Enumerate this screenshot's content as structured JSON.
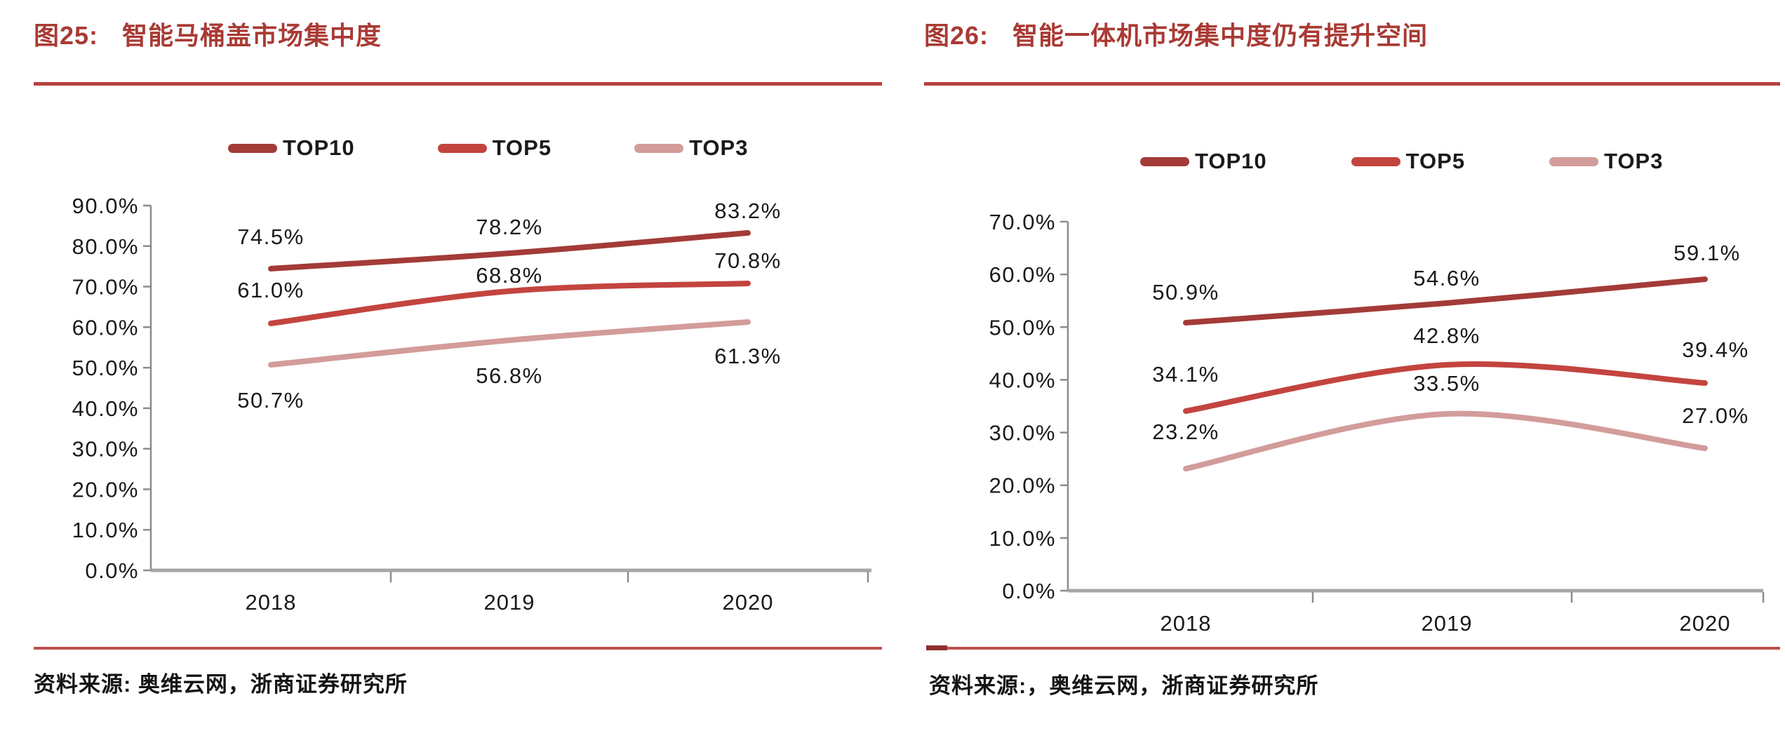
{
  "colors": {
    "figure_title": "#a93a34",
    "title_rule": "#b5423e",
    "bottom_rule": "#c0504d",
    "bottom_rule_dash": "#932f2b",
    "axis": "#8c8c8c",
    "x_axis": "#a6a6a6",
    "text": "#1a1a1a"
  },
  "charts": [
    {
      "figure_label": "图25:",
      "title": "智能马桶盖市场集中度",
      "source": "资料来源: 奥维云网，浙商证券研究所",
      "chart_data": {
        "type": "line",
        "categories": [
          "2018",
          "2019",
          "2020"
        ],
        "series": [
          {
            "name": "TOP10",
            "color": "#a33b38",
            "values": [
              74.5,
              78.2,
              83.2
            ]
          },
          {
            "name": "TOP5",
            "color": "#c3443f",
            "values": [
              61.0,
              68.8,
              70.8
            ]
          },
          {
            "name": "TOP3",
            "color": "#d29c9a",
            "values": [
              50.7,
              56.8,
              61.3
            ]
          }
        ],
        "ylim": [
          0,
          90
        ],
        "ytick_step": 10,
        "tick_format": "percent_1dp",
        "grid": false,
        "legend_position": "top",
        "smooth": true,
        "data_labels": true
      }
    },
    {
      "figure_label": "图26:",
      "title": "智能一体机市场集中度仍有提升空间",
      "source": "资料来源:，奥维云网，浙商证券研究所",
      "chart_data": {
        "type": "line",
        "categories": [
          "2018",
          "2019",
          "2020"
        ],
        "series": [
          {
            "name": "TOP10",
            "color": "#a33b38",
            "values": [
              50.9,
              54.6,
              59.1
            ]
          },
          {
            "name": "TOP5",
            "color": "#c3443f",
            "values": [
              34.1,
              42.8,
              39.4
            ]
          },
          {
            "name": "TOP3",
            "color": "#d29c9a",
            "values": [
              23.2,
              33.5,
              27.0
            ]
          }
        ],
        "ylim": [
          0,
          70
        ],
        "ytick_step": 10,
        "tick_format": "percent_1dp",
        "grid": false,
        "legend_position": "top",
        "smooth": true,
        "data_labels": true
      }
    }
  ]
}
